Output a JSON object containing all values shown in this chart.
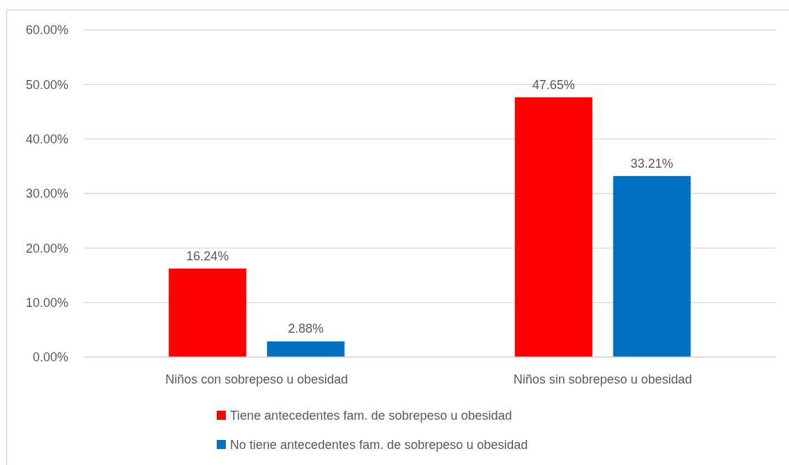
{
  "chart_data": {
    "type": "bar",
    "categories": [
      "Niños con sobrepeso u obesidad",
      "Niños sin sobrepeso u obesidad"
    ],
    "series": [
      {
        "name": "Tiene antecedentes fam. de sobrepeso u obesidad",
        "color": "#ff0000",
        "values": [
          16.24,
          47.65
        ],
        "value_labels": [
          "16.24%",
          "47.65%"
        ]
      },
      {
        "name": "No tiene antecedentes fam. de sobrepeso u obesidad",
        "color": "#0070c0",
        "values": [
          2.88,
          33.21
        ],
        "value_labels": [
          "2.88%",
          "33.21%"
        ]
      }
    ],
    "ylim": [
      0,
      60
    ],
    "yticks": [
      {
        "value": 0,
        "label": "0.00%"
      },
      {
        "value": 10,
        "label": "10.00%"
      },
      {
        "value": 20,
        "label": "20.00%"
      },
      {
        "value": 30,
        "label": "30.00%"
      },
      {
        "value": 40,
        "label": "40.00%"
      },
      {
        "value": 50,
        "label": "50.00%"
      },
      {
        "value": 60,
        "label": "60.00%"
      }
    ],
    "grid": "y",
    "legend": "bottom"
  }
}
